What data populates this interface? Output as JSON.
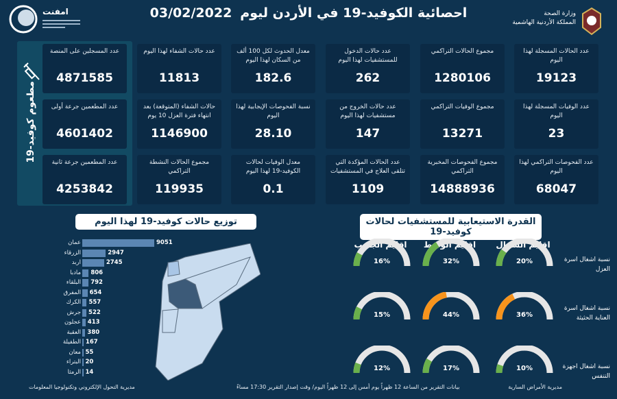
{
  "header": {
    "title": "احصائية الكوفيد-19 في الأردن ليوم",
    "date": "03/02/2022",
    "ministry": "وزارة الصحة",
    "kingdom": "المملكة الأردنية الهاشمية",
    "logo_text": "امفنت"
  },
  "vaccine": {
    "label": "مطعوم كوفيد-19",
    "icon": "syringe-icon",
    "cards": [
      {
        "label": "عدد المسجلين على المنصة",
        "value": "4871585"
      },
      {
        "label": "عدد المطعمين جرعة أولى",
        "value": "4601402"
      },
      {
        "label": "عدد المطعمين جرعة ثانية",
        "value": "4253842"
      }
    ]
  },
  "cards": [
    [
      {
        "label": "عدد الحالات المسجلة لهذا اليوم",
        "value": "19123"
      },
      {
        "label": "مجموع الحالات التراكمي",
        "value": "1280106"
      },
      {
        "label": "عدد حالات الدخول للمستشفيات لهذا اليوم",
        "value": "262"
      },
      {
        "label": "معدل الحدوث لكل 100 ألف من السكان لهذا اليوم",
        "value": "182.6"
      },
      {
        "label": "عدد حالات الشفاء لهذا اليوم",
        "value": "11813"
      }
    ],
    [
      {
        "label": "عدد الوفيات المسجلة لهذا اليوم",
        "value": "23"
      },
      {
        "label": "مجموع الوفيات التراكمي",
        "value": "13271"
      },
      {
        "label": "عدد حالات الخروج من مستشفيات لهذا اليوم",
        "value": "147"
      },
      {
        "label": "نسبة الفحوصات الإيجابية لهذا اليوم",
        "value": "28.10"
      },
      {
        "label": "حالات الشفاء (المتوقعة) بعد انتهاء فترة العزل 10 يوم",
        "value": "1146900"
      }
    ],
    [
      {
        "label": "عدد الفحوصات التراكمي لهذا اليوم",
        "value": "68047"
      },
      {
        "label": "مجموع الفحوصات المخبرية التراكمي",
        "value": "14888936"
      },
      {
        "label": "عدد الحالات المؤكدة التي تتلقى العلاج في المستشفيات",
        "value": "1109"
      },
      {
        "label": "معدل الوفيات لحالات الكوفيد-19 لهذا اليوم",
        "value": "0.1"
      },
      {
        "label": "مجموع الحالات النشطة التراكمي",
        "value": "119935"
      }
    ]
  ],
  "chart_data": [
    {
      "type": "bar",
      "orientation": "horizontal",
      "title": "توزيع حالات كوفيد-19 لهذا اليوم",
      "categories": [
        "عمان",
        "الزرقاء",
        "اربد",
        "مادبا",
        "البلقاء",
        "المفرق",
        "الكرك",
        "جرش",
        "عجلون",
        "العقبة",
        "الطفيلة",
        "معان",
        "البتراء",
        "الرمثا"
      ],
      "values": [
        9051,
        2947,
        2745,
        806,
        792,
        654,
        557,
        522,
        413,
        380,
        167,
        55,
        20,
        14
      ],
      "bar_color": "#5b86b3"
    },
    {
      "type": "gauge",
      "title": "القدرة الاستيعابية للمستشفيات لحالات كوفيد-19",
      "regions": [
        "اقليم الشمال",
        "اقليم الوسط",
        "اقليم الجنوب"
      ],
      "rows": [
        {
          "label": "نسبة اشغال اسرة العزل",
          "values": [
            20,
            32,
            16
          ]
        },
        {
          "label": "نسبة اشغال اسرة العناية الحثيثة",
          "values": [
            36,
            44,
            15
          ]
        },
        {
          "label": "نسبة اشغال اجهزة التنفس",
          "values": [
            10,
            17,
            12
          ]
        }
      ],
      "unit": "%",
      "colors": {
        "low": "#6ab04c",
        "high": "#f7941d",
        "track": "#e6e6e6"
      }
    }
  ],
  "footer": {
    "right": "مديرية الأمراض السارية",
    "center": "بيانات التقرير من الساعة 12 ظهراً يوم أمس إلى 12 ظهراً اليوم/ وقت إصدار التقرير 17:30 مساءً",
    "left": "مديرية التحول الإلكتروني وتكنولوجيا المعلومات"
  }
}
